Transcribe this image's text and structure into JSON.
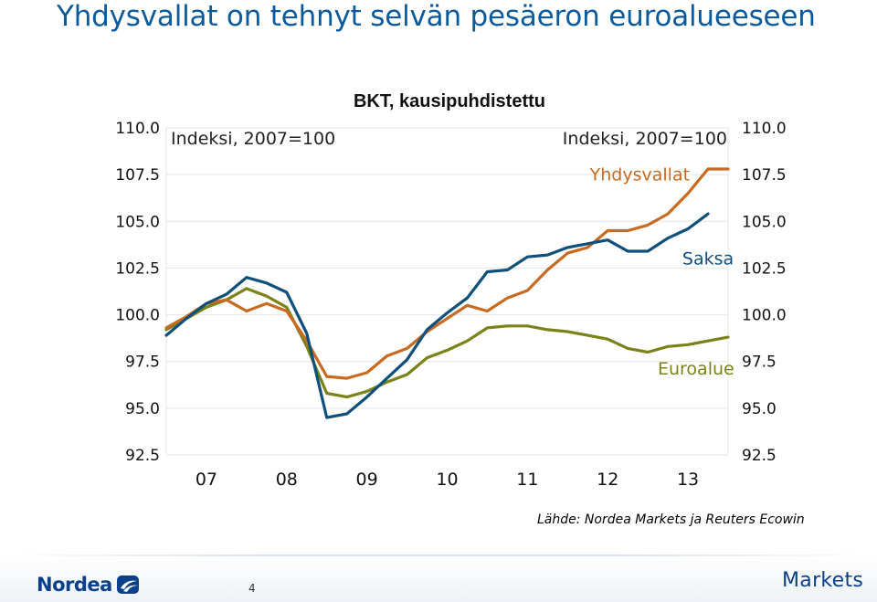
{
  "slide": {
    "title": "Yhdysvallat on tehnyt selvän pesäeron euroalueeseen",
    "source": "Lähde: Nordea Markets ja Reuters Ecowin",
    "page_number": "4",
    "logo_left": "Nordea",
    "logo_right": "Markets"
  },
  "colors": {
    "title": "#0a5a9c",
    "usa": "#c86a1f",
    "germany": "#0f4f7b",
    "euro": "#7b8217",
    "brand": "#0a3f8a"
  },
  "chart_data": {
    "type": "line",
    "title": "BKT, kausipuhdistettu",
    "ylabel_left": "Indeksi, 2007=100",
    "ylabel_right": "Indeksi, 2007=100",
    "ylim": [
      92.5,
      110.0
    ],
    "yticks": [
      "110.0",
      "107.5",
      "105.0",
      "102.5",
      "100.0",
      "97.5",
      "95.0",
      "92.5"
    ],
    "xlim": [
      2007.0,
      2014.0
    ],
    "xticks": [
      {
        "value": 2007.5,
        "label": "07"
      },
      {
        "value": 2008.5,
        "label": "08"
      },
      {
        "value": 2009.5,
        "label": "09"
      },
      {
        "value": 2010.5,
        "label": "10"
      },
      {
        "value": 2011.5,
        "label": "11"
      },
      {
        "value": 2012.5,
        "label": "12"
      },
      {
        "value": 2013.5,
        "label": "13"
      }
    ],
    "grid": true,
    "series": [
      {
        "key": "usa",
        "name": "Yhdysvallat",
        "start": 2007.0,
        "step": 0.25,
        "values": [
          99.3,
          99.9,
          100.6,
          100.8,
          100.2,
          100.6,
          100.2,
          98.6,
          96.7,
          96.6,
          96.9,
          97.8,
          98.2,
          99.1,
          99.8,
          100.5,
          100.2,
          100.9,
          101.3,
          102.4,
          103.3,
          103.6,
          104.5,
          104.5,
          104.8,
          105.4,
          106.5,
          107.8,
          107.8
        ]
      },
      {
        "key": "germany",
        "name": "Saksa",
        "start": 2007.0,
        "step": 0.25,
        "values": [
          98.9,
          99.8,
          100.6,
          101.1,
          102.0,
          101.7,
          101.2,
          99.0,
          94.5,
          94.7,
          95.6,
          96.6,
          97.6,
          99.2,
          100.1,
          100.9,
          102.3,
          102.4,
          103.1,
          103.2,
          103.6,
          103.8,
          104.0,
          103.4,
          103.4,
          104.1,
          104.6,
          105.4
        ]
      },
      {
        "key": "euro",
        "name": "Euroalue",
        "start": 2007.0,
        "step": 0.25,
        "values": [
          99.2,
          99.8,
          100.4,
          100.8,
          101.4,
          101.0,
          100.4,
          98.3,
          95.8,
          95.6,
          95.9,
          96.4,
          96.8,
          97.7,
          98.1,
          98.6,
          99.3,
          99.4,
          99.4,
          99.2,
          99.1,
          98.9,
          98.7,
          98.2,
          98.0,
          98.3,
          98.4,
          98.6,
          98.8
        ]
      }
    ],
    "annotations": [
      {
        "series": "usa",
        "text": "Yhdysvallat",
        "x": 2012.9,
        "y": 107.2
      },
      {
        "series": "germany",
        "text": "Saksa",
        "x": 2013.75,
        "y": 102.7
      },
      {
        "series": "euro",
        "text": "Euroalue",
        "x": 2013.6,
        "y": 96.8
      }
    ]
  }
}
